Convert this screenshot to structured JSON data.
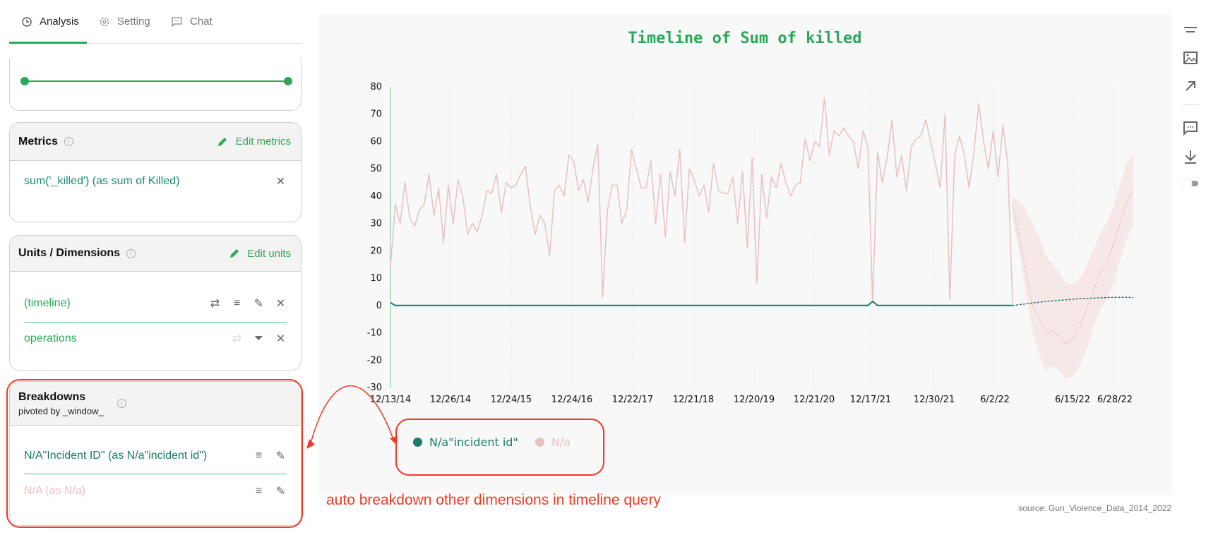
{
  "tabs": [
    {
      "label": "Analysis",
      "icon": "clock-icon"
    },
    {
      "label": "Setting",
      "icon": "gear-icon"
    },
    {
      "label": "Chat",
      "icon": "chat-icon"
    }
  ],
  "metrics": {
    "title": "Metrics",
    "edit_label": "Edit metrics",
    "items": [
      "sum('_killed') (as sum of Killed)"
    ]
  },
  "units": {
    "title": "Units / Dimensions",
    "edit_label": "Edit units",
    "items": [
      "(timeline)",
      "operations"
    ]
  },
  "breakdowns": {
    "title": "Breakdowns",
    "subtitle": "pivoted by _window_",
    "items": [
      "N/A\"Incident ID\" (as N/a\"incident id\")",
      "N/A (as N/a)"
    ]
  },
  "annotation": "auto breakdown other dimensions in timeline query",
  "source": "source: Gun_Violence_Data_2014_2022",
  "colors": {
    "accent": "#2aa85a",
    "series_green": "#1b7a68",
    "series_pink": "#e8c1c1",
    "annotation": "#f03a24"
  },
  "chart_data": {
    "type": "line",
    "title": "Timeline of Sum of killed",
    "xlabel": "",
    "ylabel": "",
    "ylim": [
      -30,
      80
    ],
    "yticks": [
      80,
      70,
      60,
      50,
      40,
      30,
      20,
      10,
      0,
      -10,
      -20,
      -30
    ],
    "xticks": [
      "12/13/14",
      "12/26/14",
      "12/24/15",
      "12/24/16",
      "12/22/17",
      "12/21/18",
      "12/20/19",
      "12/21/20",
      "12/17/21",
      "12/30/21",
      "6/2/22",
      "6/15/22",
      "6/28/22"
    ],
    "legend": [
      "N/a\"incident id\"",
      "N/a"
    ],
    "legend_position": "bottom-left",
    "series": [
      {
        "name": "N/a\"incident id\"",
        "color": "#1b7a68",
        "values": [
          1,
          0,
          0,
          0,
          0,
          0,
          0,
          0,
          0,
          0,
          0,
          0,
          0,
          0,
          0,
          0,
          0,
          0,
          0,
          0,
          0,
          0,
          0,
          0,
          0,
          0,
          0,
          0,
          0,
          0,
          0,
          0,
          0,
          0,
          0,
          0,
          0,
          0,
          0,
          0,
          0,
          0,
          0,
          0,
          0,
          0,
          0,
          0,
          0,
          0,
          0,
          0,
          0,
          0,
          0,
          0,
          0,
          0,
          0,
          0,
          0,
          0,
          0,
          0,
          0,
          0,
          0,
          0,
          0,
          0,
          0,
          0,
          0,
          0,
          0,
          0,
          0,
          0,
          0,
          0,
          0,
          0,
          0,
          0,
          0,
          0,
          0,
          0,
          0,
          0,
          0,
          0,
          0,
          0,
          0,
          0,
          0,
          0,
          0,
          0,
          1.5,
          0,
          0,
          0,
          0,
          0,
          0,
          0,
          0,
          0,
          0,
          0,
          0,
          0,
          0,
          0,
          0,
          0,
          0,
          0,
          0,
          0,
          0,
          0,
          0,
          0,
          0,
          0,
          0,
          0
        ],
        "forecast": [
          0,
          0.3,
          0.6,
          0.9,
          1.2,
          1.5,
          1.7,
          1.9,
          2.1,
          2.3,
          2.5,
          2.6,
          2.7,
          2.8,
          2.9,
          3,
          3,
          3,
          2.9
        ]
      },
      {
        "name": "N/a",
        "color": "#e8c1c1",
        "values": [
          14,
          37,
          30,
          45,
          32,
          29,
          35,
          37,
          48,
          33,
          43,
          23,
          44,
          30,
          46,
          40,
          26,
          30,
          27,
          33,
          42,
          41,
          48,
          34,
          45,
          43,
          44,
          48,
          51,
          36,
          26,
          33,
          30,
          18,
          42,
          44,
          40,
          55,
          53,
          42,
          46,
          38,
          50,
          59,
          3,
          35,
          44,
          44,
          30,
          35,
          57,
          50,
          43,
          43,
          53,
          30,
          48,
          25,
          49,
          40,
          57,
          23,
          50,
          46,
          40,
          44,
          34,
          52,
          42,
          41,
          41,
          47,
          30,
          49,
          21,
          54,
          8,
          48,
          32,
          47,
          43,
          52,
          45,
          40,
          44,
          45,
          61,
          53,
          60,
          58,
          76,
          55,
          64,
          62,
          65,
          62,
          60,
          50,
          64,
          58,
          1,
          56,
          45,
          54,
          68,
          47,
          55,
          42,
          58,
          61,
          62,
          68,
          60,
          52,
          43,
          70,
          2,
          55,
          62,
          55,
          43,
          56,
          74,
          60,
          50,
          64,
          47,
          66,
          52,
          1
        ],
        "forecast": [
          37,
          25,
          12,
          0,
          -5,
          -10,
          -9,
          -12,
          -14,
          -12,
          -8,
          -2,
          5,
          12,
          15,
          22,
          30,
          38,
          42
        ],
        "forecast_upper": [
          40,
          38,
          35,
          30,
          25,
          18,
          15,
          12,
          8,
          8,
          10,
          14,
          20,
          26,
          30,
          36,
          44,
          52,
          55
        ],
        "forecast_lower": [
          32,
          20,
          5,
          -10,
          -18,
          -24,
          -22,
          -24,
          -27,
          -26,
          -22,
          -16,
          -8,
          -2,
          2,
          8,
          16,
          24,
          30
        ]
      }
    ]
  }
}
